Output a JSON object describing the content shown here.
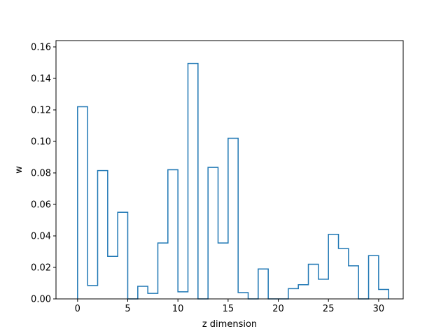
{
  "chart_data": {
    "type": "line",
    "style": "step histogram outline",
    "title": "",
    "xlabel": "z dimension",
    "ylabel": "w",
    "xlim": [
      -2.15,
      32.45
    ],
    "ylim": [
      0.0,
      0.164
    ],
    "x_ticks": [
      0,
      5,
      10,
      15,
      20,
      25,
      30
    ],
    "y_ticks": [
      0.0,
      0.02,
      0.04,
      0.06,
      0.08,
      0.1,
      0.12,
      0.14,
      0.16
    ],
    "x_tick_labels": [
      "0",
      "5",
      "10",
      "15",
      "20",
      "25",
      "30"
    ],
    "y_tick_labels": [
      "0.00",
      "0.02",
      "0.04",
      "0.06",
      "0.08",
      "0.10",
      "0.12",
      "0.14",
      "0.16"
    ],
    "grid": false,
    "legend": "none",
    "line_color": "#1f77b4",
    "series": [
      {
        "x": [
          0.5,
          1.5,
          2.5,
          3.5,
          4.5,
          5.5,
          6.5,
          7.5,
          8.5,
          9.5,
          10.5,
          11.5,
          12.5,
          13.5,
          14.5,
          15.5,
          16.5,
          17.5,
          18.5,
          19.5,
          20.5,
          21.5,
          22.5,
          23.5,
          24.5,
          25.5,
          26.5,
          27.5,
          28.5,
          29.5,
          30.5
        ],
        "values": [
          0.122,
          0.0085,
          0.0815,
          0.027,
          0.055,
          0.0,
          0.008,
          0.0035,
          0.0355,
          0.082,
          0.0045,
          0.1495,
          0.0,
          0.0835,
          0.0355,
          0.102,
          0.004,
          0.0,
          0.019,
          0.0,
          0.0,
          0.0065,
          0.009,
          0.022,
          0.0125,
          0.041,
          0.032,
          0.021,
          0.0,
          0.0275,
          0.006
        ]
      }
    ]
  }
}
